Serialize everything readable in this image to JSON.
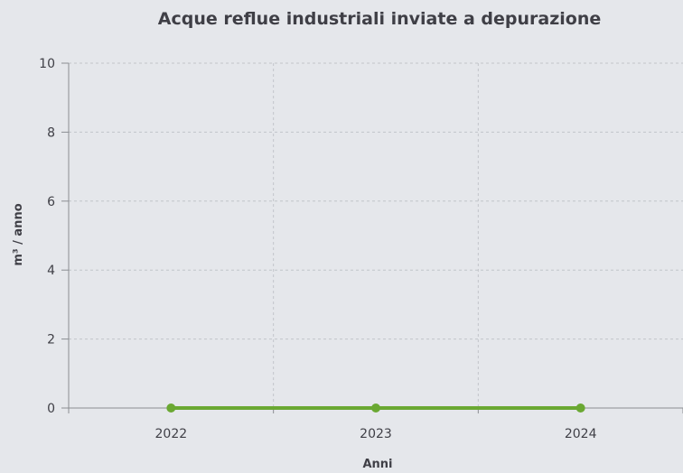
{
  "chart_data": {
    "type": "line",
    "title": "Acque reflue industriali inviate a depurazione",
    "xlabel": "Anni",
    "ylabel": "m³ / anno",
    "categories": [
      "2022",
      "2023",
      "2024"
    ],
    "series": [
      {
        "values": [
          0,
          0,
          0
        ],
        "color": "#6aa832"
      }
    ],
    "ylim": [
      0,
      10
    ],
    "yticks": [
      0,
      2,
      4,
      6,
      8,
      10
    ],
    "grid": true,
    "legend": "none"
  }
}
